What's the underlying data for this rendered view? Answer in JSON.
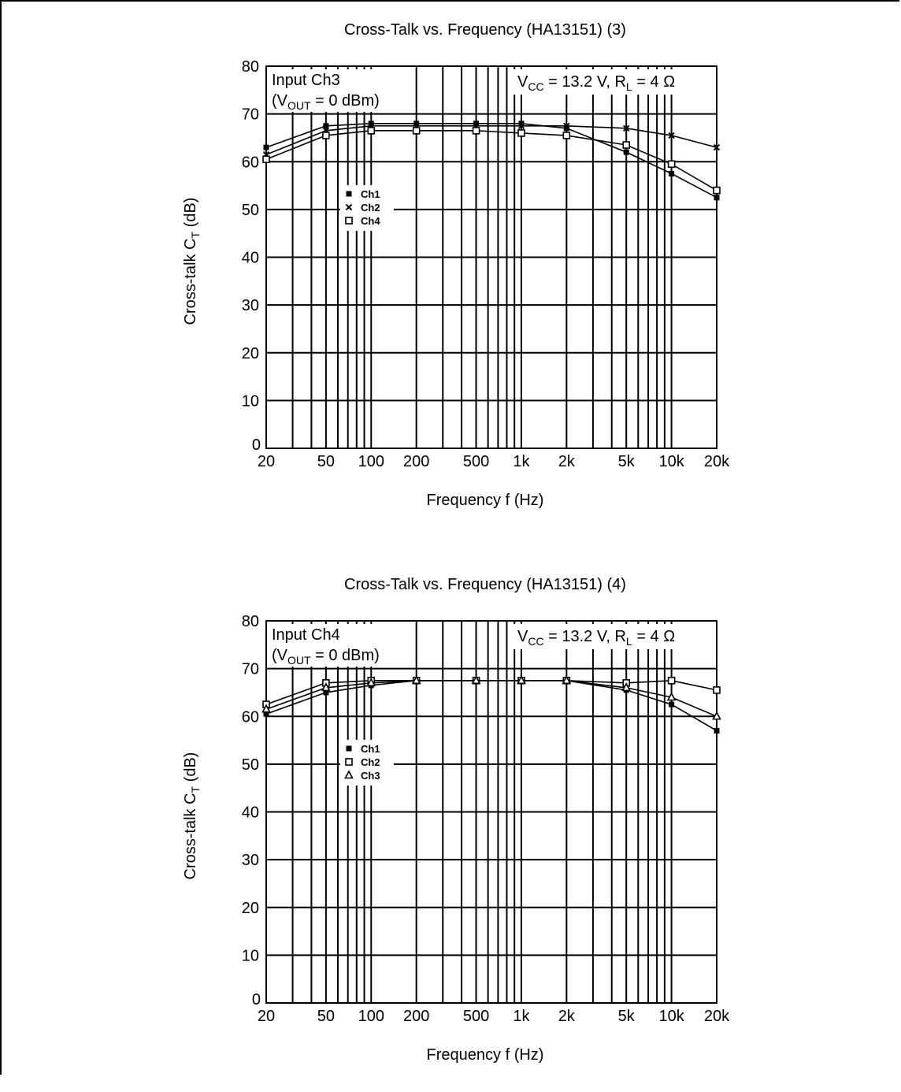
{
  "colors": {
    "ink": "#000000",
    "paper": "#ffffff"
  },
  "chart_data": [
    {
      "type": "line",
      "title": "Cross-Talk vs. Frequency (HA13151) (3)",
      "xlabel": "Frequency f (Hz)",
      "ylabel": "Cross-talk C",
      "ylabel_sub": "T",
      "ylabel_unit": "(dB)",
      "x_scale": "log",
      "xlim": [
        20,
        20000
      ],
      "ylim": [
        0,
        80
      ],
      "grid": true,
      "x_ticks": [
        {
          "value": 20,
          "label": "20"
        },
        {
          "value": 50,
          "label": "50"
        },
        {
          "value": 100,
          "label": "100"
        },
        {
          "value": 200,
          "label": "200"
        },
        {
          "value": 500,
          "label": "500"
        },
        {
          "value": 1000,
          "label": "1k"
        },
        {
          "value": 2000,
          "label": "2k"
        },
        {
          "value": 5000,
          "label": "5k"
        },
        {
          "value": 10000,
          "label": "10k"
        },
        {
          "value": 20000,
          "label": "20k"
        }
      ],
      "y_ticks": [
        {
          "value": 0,
          "label": "0"
        },
        {
          "value": 10,
          "label": "10"
        },
        {
          "value": 20,
          "label": "20"
        },
        {
          "value": 30,
          "label": "30"
        },
        {
          "value": 40,
          "label": "40"
        },
        {
          "value": 50,
          "label": "50"
        },
        {
          "value": 60,
          "label": "60"
        },
        {
          "value": 70,
          "label": "70"
        },
        {
          "value": 80,
          "label": "80"
        }
      ],
      "annotation_input": {
        "line1": "Input Ch3",
        "line2_pre": "(V",
        "line2_sub": "OUT",
        "line2_post": " = 0 dBm)"
      },
      "annotation_conditions": {
        "a": "V",
        "a_sub": "CC",
        "b": " = 13.2 V, R",
        "b_sub": "L",
        "c": " = 4 Ω"
      },
      "legend_position": "center-left",
      "series": [
        {
          "name": "Ch1",
          "marker": "dot",
          "x": [
            20,
            50,
            100,
            200,
            500,
            1000,
            2000,
            5000,
            10000,
            20000
          ],
          "y": [
            63,
            67.5,
            68,
            68,
            68,
            68,
            67,
            62,
            57.5,
            52.5
          ]
        },
        {
          "name": "Ch2",
          "marker": "x",
          "x": [
            20,
            50,
            100,
            200,
            500,
            1000,
            2000,
            5000,
            10000,
            20000
          ],
          "y": [
            61.5,
            66.5,
            67.5,
            67.5,
            67.5,
            67.5,
            67.5,
            67,
            65.5,
            63
          ]
        },
        {
          "name": "Ch4",
          "marker": "square",
          "x": [
            20,
            50,
            100,
            200,
            500,
            1000,
            2000,
            5000,
            10000,
            20000
          ],
          "y": [
            60.5,
            65.5,
            66.5,
            66.5,
            66.5,
            66,
            65.5,
            63.5,
            59.5,
            54
          ]
        }
      ]
    },
    {
      "type": "line",
      "title": "Cross-Talk vs. Frequency (HA13151) (4)",
      "xlabel": "Frequency f (Hz)",
      "ylabel": "Cross-talk C",
      "ylabel_sub": "T",
      "ylabel_unit": "(dB)",
      "x_scale": "log",
      "xlim": [
        20,
        20000
      ],
      "ylim": [
        0,
        80
      ],
      "grid": true,
      "x_ticks": [
        {
          "value": 20,
          "label": "20"
        },
        {
          "value": 50,
          "label": "50"
        },
        {
          "value": 100,
          "label": "100"
        },
        {
          "value": 200,
          "label": "200"
        },
        {
          "value": 500,
          "label": "500"
        },
        {
          "value": 1000,
          "label": "1k"
        },
        {
          "value": 2000,
          "label": "2k"
        },
        {
          "value": 5000,
          "label": "5k"
        },
        {
          "value": 10000,
          "label": "10k"
        },
        {
          "value": 20000,
          "label": "20k"
        }
      ],
      "y_ticks": [
        {
          "value": 0,
          "label": "0"
        },
        {
          "value": 10,
          "label": "10"
        },
        {
          "value": 20,
          "label": "20"
        },
        {
          "value": 30,
          "label": "30"
        },
        {
          "value": 40,
          "label": "40"
        },
        {
          "value": 50,
          "label": "50"
        },
        {
          "value": 60,
          "label": "60"
        },
        {
          "value": 70,
          "label": "70"
        },
        {
          "value": 80,
          "label": "80"
        }
      ],
      "annotation_input": {
        "line1": "Input Ch4",
        "line2_pre": "(V",
        "line2_sub": "OUT",
        "line2_post": " = 0 dBm)"
      },
      "annotation_conditions": {
        "a": "V",
        "a_sub": "CC",
        "b": " = 13.2 V, R",
        "b_sub": "L",
        "c": " = 4 Ω"
      },
      "legend_position": "center-left",
      "series": [
        {
          "name": "Ch1",
          "marker": "dot",
          "x": [
            20,
            50,
            100,
            200,
            500,
            1000,
            2000,
            5000,
            10000,
            20000
          ],
          "y": [
            60.5,
            65,
            66.5,
            67.5,
            67.5,
            67.5,
            67.5,
            65.5,
            62.5,
            57
          ]
        },
        {
          "name": "Ch2",
          "marker": "square",
          "x": [
            20,
            50,
            100,
            200,
            500,
            1000,
            2000,
            5000,
            10000,
            20000
          ],
          "y": [
            62.5,
            67,
            67.5,
            67.5,
            67.5,
            67.5,
            67.5,
            67,
            67.5,
            65.5
          ]
        },
        {
          "name": "Ch3",
          "marker": "triangle",
          "x": [
            20,
            50,
            100,
            200,
            500,
            1000,
            2000,
            5000,
            10000,
            20000
          ],
          "y": [
            61.5,
            66,
            67,
            67.5,
            67.5,
            67.5,
            67.5,
            66,
            64,
            60
          ]
        }
      ]
    }
  ]
}
